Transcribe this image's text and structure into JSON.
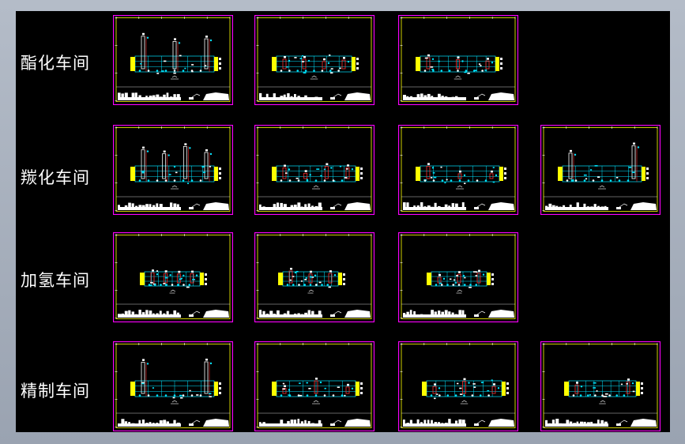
{
  "rows": [
    {
      "label": "酯化车间",
      "sheets": 3
    },
    {
      "label": "羰化车间",
      "sheets": 4
    },
    {
      "label": "加氢车间",
      "sheets": 3
    },
    {
      "label": "精制车间",
      "sheets": 4
    }
  ],
  "colors": {
    "frame": "#ff00ff",
    "border": "#ffff00",
    "grid": "#00e5ff",
    "vessel": "#ff3030",
    "equipment": "#ffff00",
    "text": "#ffffff"
  }
}
